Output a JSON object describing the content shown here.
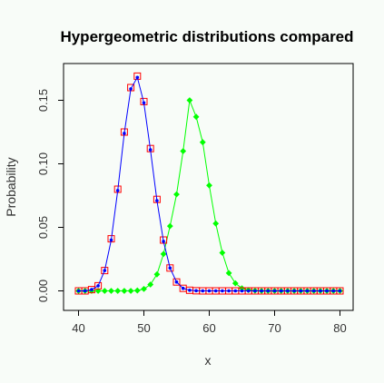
{
  "chart_data": {
    "type": "line",
    "title": "Hypergeometric distributions compared",
    "xlabel": "x",
    "ylabel": "Probability",
    "xlim": [
      40,
      80
    ],
    "ylim": [
      0,
      0.17
    ],
    "xticks": [
      "40",
      "50",
      "60",
      "70",
      "80"
    ],
    "yticks": [
      "0.00",
      "0.05",
      "0.10",
      "0.15"
    ],
    "colors": {
      "red": "#ff0000",
      "blue": "#0000ff",
      "green": "#00ff00",
      "background": "#f8fcf8"
    },
    "x": [
      40,
      41,
      42,
      43,
      44,
      45,
      46,
      47,
      48,
      49,
      50,
      51,
      52,
      53,
      54,
      55,
      56,
      57,
      58,
      59,
      60,
      61,
      62,
      63,
      64,
      65,
      66,
      67,
      68,
      69,
      70,
      71,
      72,
      73,
      74,
      75,
      76,
      77,
      78,
      79,
      80
    ],
    "series": [
      {
        "style": "open-square-red",
        "values": [
          0,
          0,
          0.001,
          0.004,
          0.016,
          0.041,
          0.08,
          0.125,
          0.16,
          0.169,
          0.149,
          0.112,
          0.072,
          0.04,
          0.018,
          0.007,
          0.002,
          0.0005,
          0.0001,
          0,
          0,
          0,
          0,
          0,
          0,
          0,
          0,
          0,
          0,
          0,
          0,
          0,
          0,
          0,
          0,
          0,
          0,
          0,
          0,
          0,
          0
        ]
      },
      {
        "style": "blue-line-dots",
        "values": [
          0,
          0,
          0.001,
          0.004,
          0.016,
          0.04,
          0.079,
          0.124,
          0.159,
          0.168,
          0.148,
          0.111,
          0.071,
          0.039,
          0.018,
          0.007,
          0.002,
          0.0005,
          0.0001,
          0,
          0,
          0,
          0,
          0,
          0,
          0,
          0,
          0,
          0,
          0,
          0,
          0,
          0,
          0,
          0,
          0,
          0,
          0,
          0,
          0,
          0
        ]
      },
      {
        "style": "green-line-diamonds",
        "values": [
          0,
          0,
          0,
          0,
          0,
          0,
          0,
          0,
          0,
          0.0003,
          0.0015,
          0.005,
          0.013,
          0.029,
          0.051,
          0.076,
          0.11,
          0.15,
          0.137,
          0.117,
          0.083,
          0.053,
          0.03,
          0.014,
          0.006,
          0.002,
          0.0006,
          0.0002,
          0,
          0,
          0,
          0,
          0,
          0,
          0,
          0,
          0,
          0,
          0,
          0,
          0
        ]
      }
    ],
    "legend": "none",
    "grid": false
  }
}
